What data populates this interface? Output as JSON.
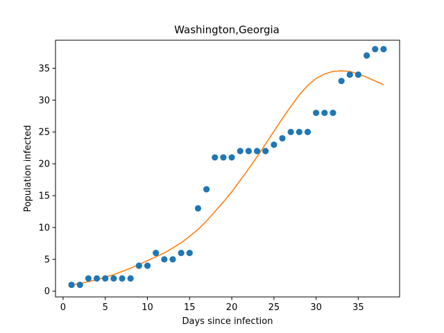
{
  "chart_data": {
    "type": "scatter",
    "title": "Washington,Georgia",
    "xlabel": "Days since infection",
    "ylabel": "Population infected",
    "xlim": [
      -0.9,
      39.9
    ],
    "ylim": [
      -0.9,
      39.4
    ],
    "xticks": [
      0,
      5,
      10,
      15,
      20,
      25,
      30,
      35
    ],
    "yticks": [
      0,
      5,
      10,
      15,
      20,
      25,
      30,
      35
    ],
    "grid": false,
    "series": [
      {
        "kind": "scatter",
        "color": "#1f77b4",
        "x": [
          1,
          2,
          3,
          4,
          5,
          6,
          7,
          8,
          9,
          10,
          11,
          12,
          13,
          14,
          15,
          16,
          17,
          18,
          19,
          20,
          21,
          22,
          23,
          24,
          25,
          26,
          27,
          28,
          29,
          30,
          31,
          32,
          33,
          34,
          35,
          36,
          37,
          38
        ],
        "y": [
          1,
          1,
          2,
          2,
          2,
          2,
          2,
          2,
          4,
          4,
          6,
          5,
          5,
          6,
          6,
          13,
          16,
          21,
          21,
          21,
          22,
          22,
          22,
          22,
          23,
          24,
          25,
          25,
          25,
          28,
          28,
          28,
          33,
          34,
          34,
          37,
          38,
          38
        ]
      },
      {
        "kind": "line",
        "color": "#ff7f0e",
        "x": [
          1,
          2,
          3,
          4,
          5,
          6,
          7,
          8,
          9,
          10,
          11,
          12,
          13,
          14,
          15,
          16,
          17,
          18,
          19,
          20,
          21,
          22,
          23,
          24,
          25,
          26,
          27,
          28,
          29,
          30,
          31,
          32,
          33,
          34,
          35,
          36,
          37,
          38
        ],
        "y": [
          1.0,
          1.2,
          1.5,
          1.8,
          2.2,
          2.6,
          3.1,
          3.6,
          4.2,
          4.8,
          5.4,
          6.0,
          6.8,
          7.6,
          8.6,
          9.7,
          11.0,
          12.5,
          14.0,
          15.6,
          17.4,
          19.2,
          21.1,
          23.1,
          25.1,
          27.1,
          29.0,
          30.8,
          32.3,
          33.4,
          34.1,
          34.5,
          34.6,
          34.5,
          34.1,
          33.6,
          33.0,
          32.4
        ]
      }
    ]
  }
}
